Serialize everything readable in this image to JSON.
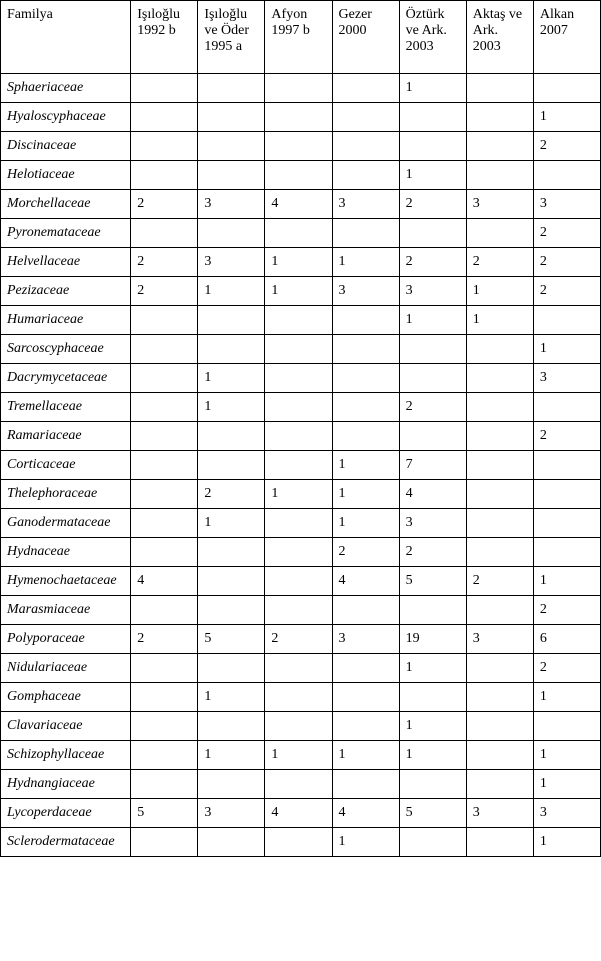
{
  "columns": [
    "Familya",
    "Işıloğlu 1992 b",
    "Işıloğlu ve Öder 1995 a",
    "Afyon 1997 b",
    "Gezer 2000",
    "Öztürk ve Ark. 2003",
    "Aktaş ve Ark. 2003",
    "Alkan 2007"
  ],
  "rows": [
    {
      "family": "Sphaeriaceae",
      "vals": [
        "",
        "",
        "",
        "",
        "1",
        "",
        ""
      ]
    },
    {
      "family": "Hyaloscyphaceae",
      "vals": [
        "",
        "",
        "",
        "",
        "",
        "",
        "1"
      ]
    },
    {
      "family": "Discinaceae",
      "vals": [
        "",
        "",
        "",
        "",
        "",
        "",
        "2"
      ]
    },
    {
      "family": "Helotiaceae",
      "vals": [
        "",
        "",
        "",
        "",
        "1",
        "",
        ""
      ]
    },
    {
      "family": "Morchellaceae",
      "vals": [
        "2",
        "3",
        "4",
        "3",
        "2",
        "3",
        "3"
      ]
    },
    {
      "family": "Pyronemataceae",
      "vals": [
        "",
        "",
        "",
        "",
        "",
        "",
        "2"
      ]
    },
    {
      "family": "Helvellaceae",
      "vals": [
        "2",
        "3",
        "1",
        "1",
        "2",
        "2",
        "2"
      ]
    },
    {
      "family": "Pezizaceae",
      "vals": [
        "2",
        "1",
        "1",
        "3",
        "3",
        "1",
        "2"
      ]
    },
    {
      "family": "Humariaceae",
      "vals": [
        "",
        "",
        "",
        "",
        "1",
        "1",
        ""
      ]
    },
    {
      "family": "Sarcoscyphaceae",
      "vals": [
        "",
        "",
        "",
        "",
        "",
        "",
        "1"
      ]
    },
    {
      "family": "Dacrymycetaceae",
      "vals": [
        "",
        "1",
        "",
        "",
        "",
        "",
        "3"
      ]
    },
    {
      "family": "Tremellaceae",
      "vals": [
        "",
        "1",
        "",
        "",
        "2",
        "",
        ""
      ]
    },
    {
      "family": "Ramariaceae",
      "vals": [
        "",
        "",
        "",
        "",
        "",
        "",
        "2"
      ]
    },
    {
      "family": "Corticaceae",
      "vals": [
        "",
        "",
        "",
        "1",
        "7",
        "",
        ""
      ]
    },
    {
      "family": "Thelephoraceae",
      "vals": [
        "",
        "2",
        "1",
        "1",
        "4",
        "",
        ""
      ]
    },
    {
      "family": "Ganodermataceae",
      "vals": [
        "",
        "1",
        "",
        "1",
        "3",
        "",
        ""
      ]
    },
    {
      "family": "Hydnaceae",
      "vals": [
        "",
        "",
        "",
        "2",
        "2",
        "",
        ""
      ]
    },
    {
      "family": "Hymenochaetaceae",
      "vals": [
        "4",
        "",
        "",
        "4",
        "5",
        "2",
        "1"
      ]
    },
    {
      "family": "Marasmiaceae",
      "vals": [
        "",
        "",
        "",
        "",
        "",
        "",
        "2"
      ]
    },
    {
      "family": "Polyporaceae",
      "vals": [
        "2",
        "5",
        "2",
        "3",
        "19",
        "3",
        "6"
      ]
    },
    {
      "family": "Nidulariaceae",
      "vals": [
        "",
        "",
        "",
        "",
        "1",
        "",
        "2"
      ]
    },
    {
      "family": "Gomphaceae",
      "vals": [
        "",
        "1",
        "",
        "",
        "",
        "",
        "1"
      ]
    },
    {
      "family": "Clavariaceae",
      "vals": [
        "",
        "",
        "",
        "",
        "1",
        "",
        ""
      ]
    },
    {
      "family": "Schizophyllaceae",
      "vals": [
        "",
        "1",
        "1",
        "1",
        "1",
        "",
        "1"
      ]
    },
    {
      "family": "Hydnangiaceae",
      "vals": [
        "",
        "",
        "",
        "",
        "",
        "",
        "1"
      ]
    },
    {
      "family": "Lycoperdaceae",
      "vals": [
        "5",
        "3",
        "4",
        "4",
        "5",
        "3",
        "3"
      ]
    },
    {
      "family": "Sclerodermataceae",
      "vals": [
        "",
        "",
        "",
        "1",
        "",
        "",
        "1"
      ]
    }
  ]
}
